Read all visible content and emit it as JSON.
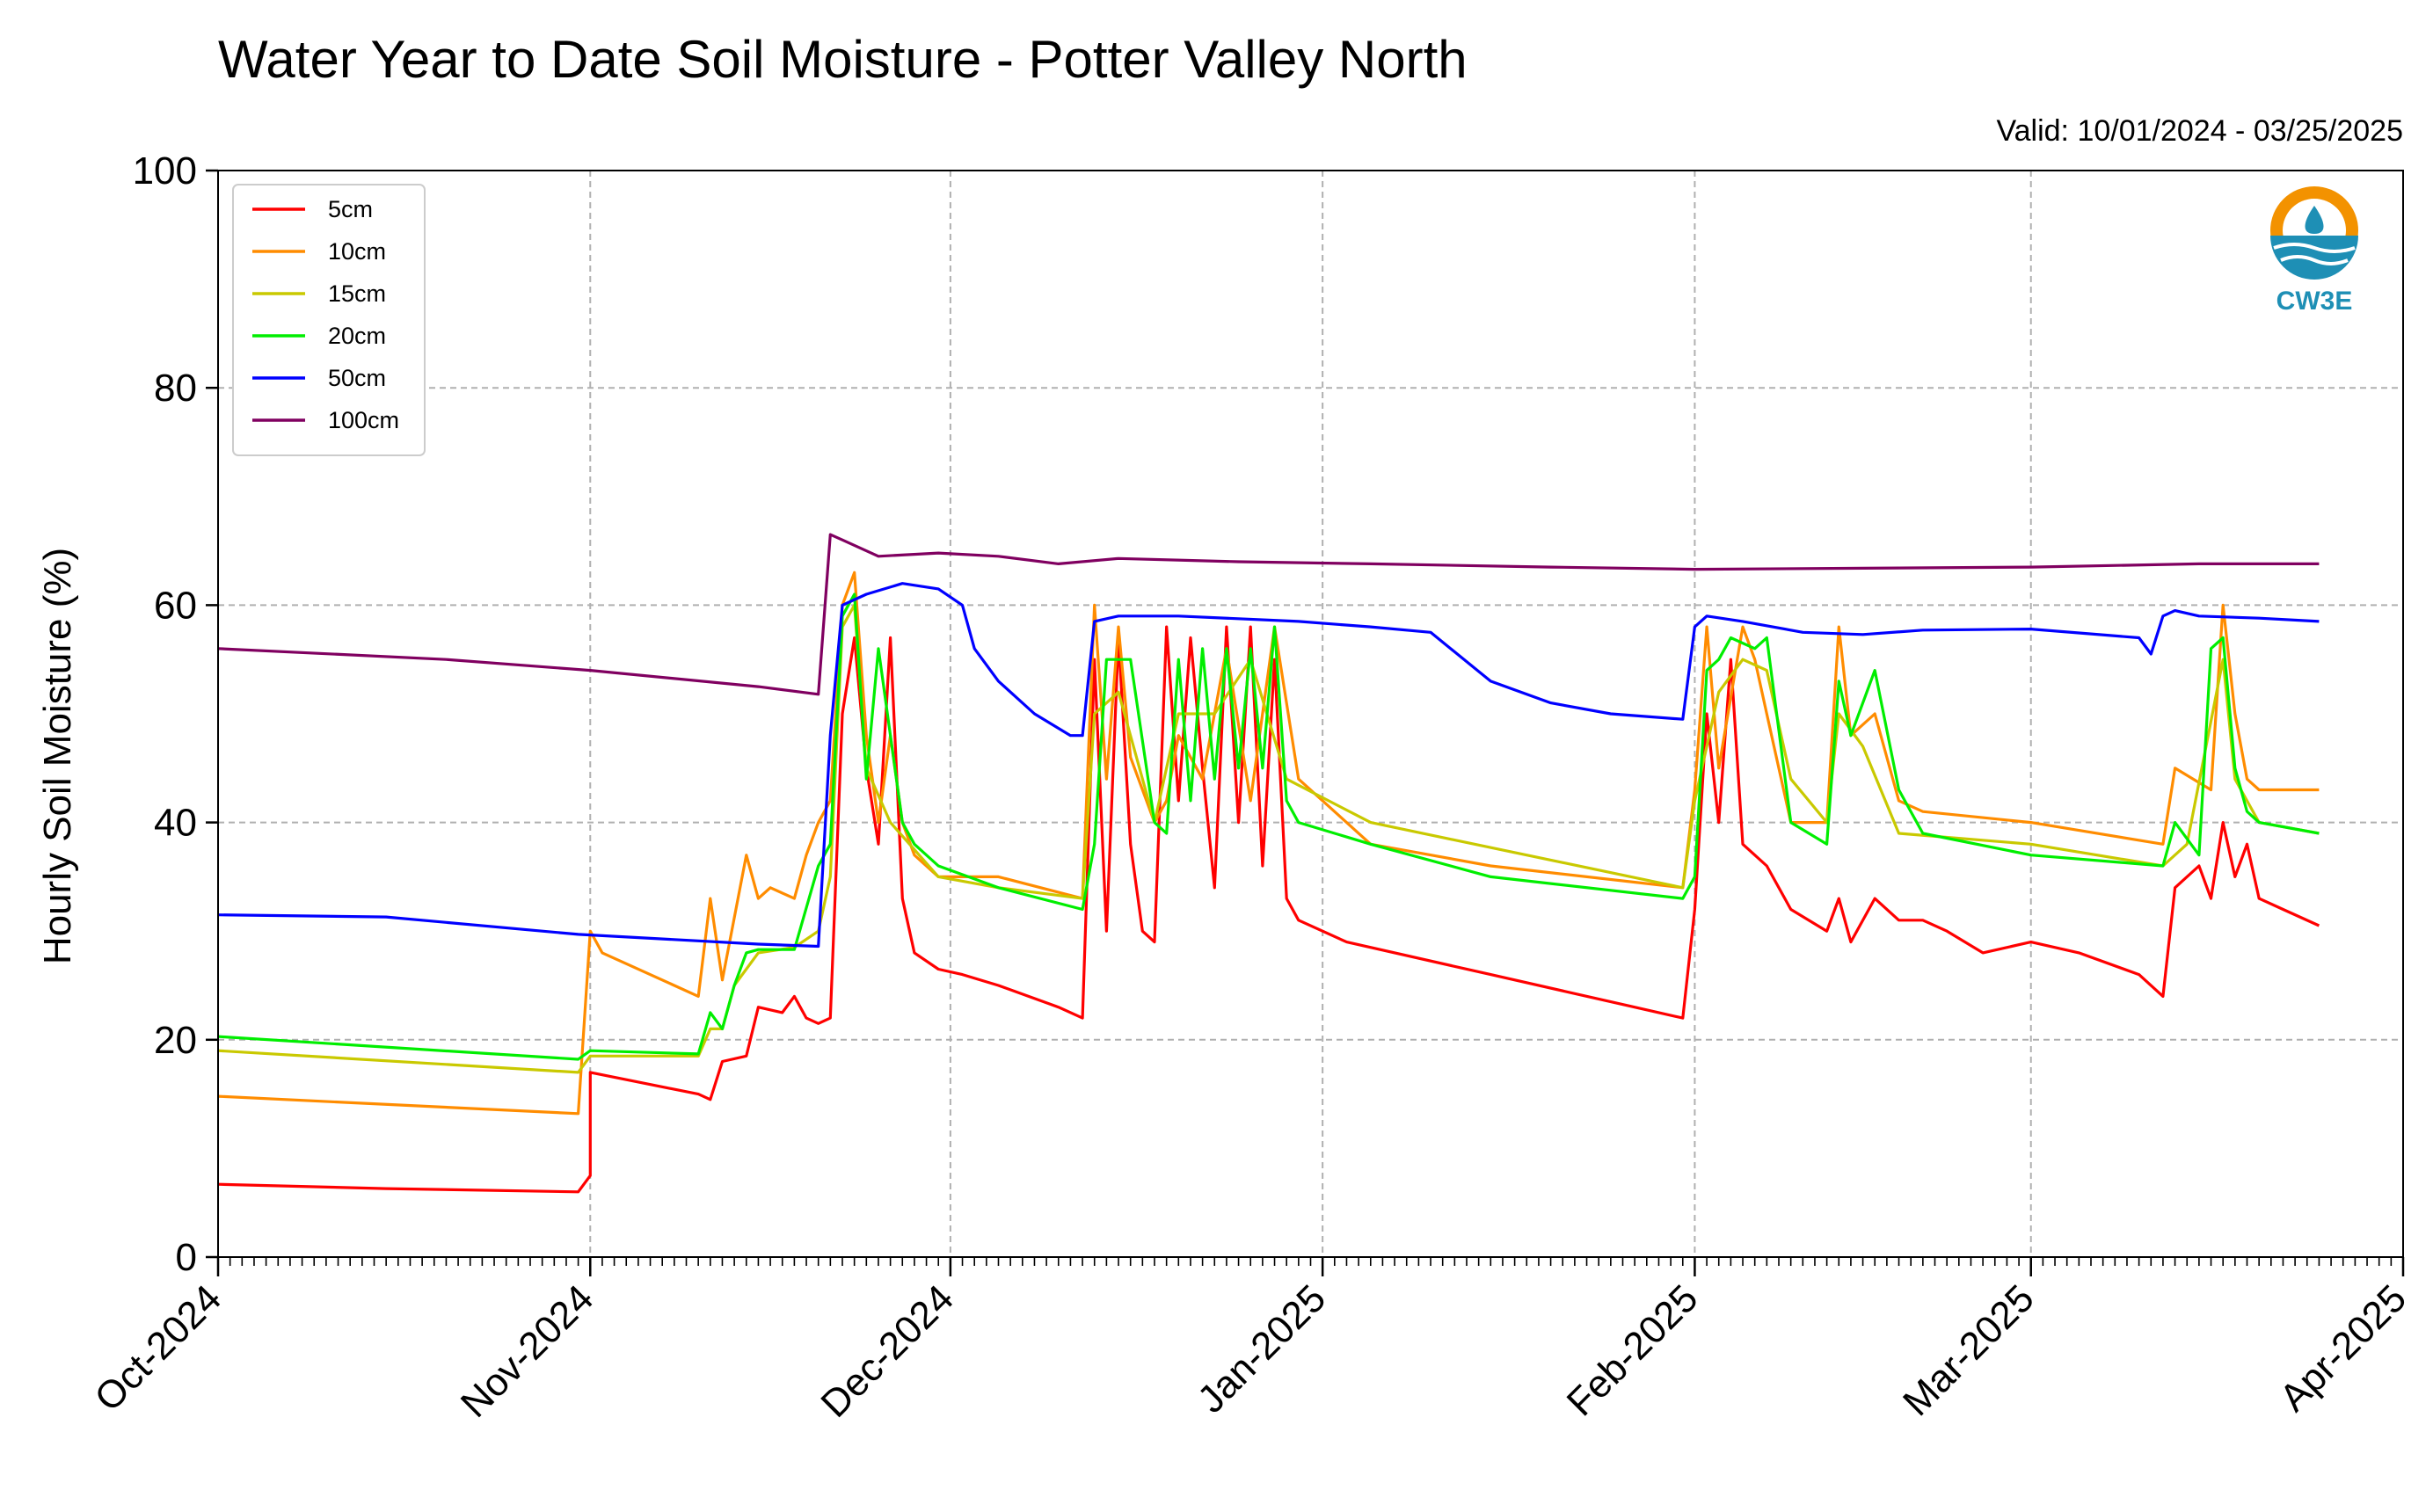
{
  "chart_data": {
    "type": "line",
    "title": "Water Year to Date Soil Moisture - Potter Valley North",
    "subtitle": "Valid: 10/01/2024 - 03/25/2025",
    "xlabel": "",
    "ylabel": "Hourly Soil Moisture (%)",
    "ylim": [
      0,
      100
    ],
    "yticks": [
      0,
      20,
      40,
      60,
      80,
      100
    ],
    "xlim": [
      "2024-10-01",
      "2025-04-01"
    ],
    "xtick_labels": [
      "Oct-2024",
      "Nov-2024",
      "Dec-2024",
      "Jan-2025",
      "Feb-2025",
      "Mar-2025",
      "Apr-2025"
    ],
    "xtick_dates": [
      "2024-10-01",
      "2024-11-01",
      "2024-12-01",
      "2025-01-01",
      "2025-02-01",
      "2025-03-01",
      "2025-04-01"
    ],
    "grid": true,
    "legend_position": "top-left",
    "logo_text": "CW3E",
    "series": [
      {
        "name": "5cm",
        "color": "#ff0000",
        "x": [
          "2024-10-01",
          "2024-10-15",
          "2024-10-31",
          "2024-11-01",
          "2024-11-01",
          "2024-11-10",
          "2024-11-11",
          "2024-11-12",
          "2024-11-14",
          "2024-11-15",
          "2024-11-17",
          "2024-11-18",
          "2024-11-19",
          "2024-11-20",
          "2024-11-21",
          "2024-11-22",
          "2024-11-23",
          "2024-11-24",
          "2024-11-25",
          "2024-11-26",
          "2024-11-27",
          "2024-11-28",
          "2024-11-30",
          "2024-12-02",
          "2024-12-05",
          "2024-12-10",
          "2024-12-12",
          "2024-12-13",
          "2024-12-14",
          "2024-12-15",
          "2024-12-16",
          "2024-12-17",
          "2024-12-18",
          "2024-12-19",
          "2024-12-20",
          "2024-12-21",
          "2024-12-22",
          "2024-12-23",
          "2024-12-24",
          "2024-12-25",
          "2024-12-26",
          "2024-12-27",
          "2024-12-28",
          "2024-12-29",
          "2024-12-30",
          "2025-01-03",
          "2025-01-15",
          "2025-01-31",
          "2025-02-01",
          "2025-02-02",
          "2025-02-03",
          "2025-02-04",
          "2025-02-05",
          "2025-02-06",
          "2025-02-07",
          "2025-02-09",
          "2025-02-12",
          "2025-02-13",
          "2025-02-14",
          "2025-02-16",
          "2025-02-18",
          "2025-02-20",
          "2025-02-22",
          "2025-02-25",
          "2025-03-01",
          "2025-03-05",
          "2025-03-10",
          "2025-03-12",
          "2025-03-13",
          "2025-03-15",
          "2025-03-16",
          "2025-03-17",
          "2025-03-18",
          "2025-03-19",
          "2025-03-20",
          "2025-03-22",
          "2025-03-25"
        ],
        "y": [
          6.7,
          6.3,
          6.0,
          7.5,
          17,
          15,
          14.5,
          18,
          18.5,
          23,
          22.5,
          24,
          22,
          21.5,
          22,
          50,
          57,
          45,
          38,
          57,
          33,
          28,
          26.5,
          26,
          25,
          23,
          22,
          55,
          30,
          57,
          38,
          30,
          29,
          58,
          42,
          57,
          45,
          34,
          58,
          40,
          58,
          36,
          55,
          33,
          31,
          29,
          26,
          22,
          32,
          50,
          40,
          55,
          38,
          37,
          36,
          32,
          30,
          33,
          29,
          33,
          31,
          31,
          30,
          28,
          29,
          28,
          26,
          24,
          34,
          36,
          33,
          40,
          35,
          38,
          33,
          32,
          30.5
        ]
      },
      {
        "name": "10cm",
        "color": "#ff8c00",
        "x": [
          "2024-10-01",
          "2024-10-31",
          "2024-11-01",
          "2024-11-02",
          "2024-11-10",
          "2024-11-11",
          "2024-11-12",
          "2024-11-14",
          "2024-11-15",
          "2024-11-16",
          "2024-11-18",
          "2024-11-19",
          "2024-11-20",
          "2024-11-21",
          "2024-11-22",
          "2024-11-23",
          "2024-11-24",
          "2024-11-25",
          "2024-11-26",
          "2024-11-27",
          "2024-11-28",
          "2024-11-30",
          "2024-12-05",
          "2024-12-12",
          "2024-12-13",
          "2024-12-14",
          "2024-12-15",
          "2024-12-16",
          "2024-12-18",
          "2024-12-19",
          "2024-12-20",
          "2024-12-22",
          "2024-12-24",
          "2024-12-26",
          "2024-12-28",
          "2024-12-30",
          "2025-01-05",
          "2025-01-15",
          "2025-01-31",
          "2025-02-01",
          "2025-02-02",
          "2025-02-03",
          "2025-02-05",
          "2025-02-06",
          "2025-02-07",
          "2025-02-09",
          "2025-02-12",
          "2025-02-13",
          "2025-02-14",
          "2025-02-16",
          "2025-02-18",
          "2025-02-20",
          "2025-03-01",
          "2025-03-12",
          "2025-03-13",
          "2025-03-16",
          "2025-03-17",
          "2025-03-18",
          "2025-03-19",
          "2025-03-20",
          "2025-03-25"
        ],
        "y": [
          14.8,
          13.2,
          30,
          28,
          24,
          33,
          25.5,
          37,
          33,
          34,
          33,
          37,
          40,
          42,
          60,
          63,
          48,
          40,
          48,
          40,
          37,
          35,
          35,
          33,
          60,
          44,
          58,
          46,
          40,
          42,
          48,
          44,
          56,
          42,
          58,
          44,
          38,
          36,
          34,
          43,
          58,
          45,
          58,
          55,
          50,
          40,
          40,
          58,
          48,
          50,
          42,
          41,
          40,
          38,
          45,
          43,
          60,
          50,
          44,
          43,
          43
        ]
      },
      {
        "name": "15cm",
        "color": "#c9c900",
        "x": [
          "2024-10-01",
          "2024-10-31",
          "2024-11-01",
          "2024-11-10",
          "2024-11-11",
          "2024-11-12",
          "2024-11-13",
          "2024-11-15",
          "2024-11-18",
          "2024-11-20",
          "2024-11-21",
          "2024-11-22",
          "2024-11-23",
          "2024-11-24",
          "2024-11-26",
          "2024-11-30",
          "2024-12-05",
          "2024-12-12",
          "2024-12-13",
          "2024-12-15",
          "2024-12-18",
          "2024-12-20",
          "2024-12-23",
          "2024-12-26",
          "2024-12-29",
          "2025-01-05",
          "2025-01-31",
          "2025-02-01",
          "2025-02-03",
          "2025-02-05",
          "2025-02-07",
          "2025-02-09",
          "2025-02-12",
          "2025-02-13",
          "2025-02-15",
          "2025-02-18",
          "2025-03-01",
          "2025-03-12",
          "2025-03-14",
          "2025-03-17",
          "2025-03-18",
          "2025-03-20",
          "2025-03-25"
        ],
        "y": [
          19,
          17,
          18.5,
          18.5,
          21,
          21,
          25,
          28,
          28.5,
          30,
          35,
          58,
          60,
          45,
          40,
          35,
          34,
          33,
          50,
          52,
          40,
          50,
          50,
          55,
          44,
          40,
          34,
          42,
          52,
          55,
          54,
          44,
          40,
          50,
          47,
          39,
          38,
          36,
          38,
          55,
          44,
          40,
          39
        ]
      },
      {
        "name": "20cm",
        "color": "#00ee00",
        "x": [
          "2024-10-01",
          "2024-10-31",
          "2024-11-01",
          "2024-11-10",
          "2024-11-11",
          "2024-11-12",
          "2024-11-13",
          "2024-11-14",
          "2024-11-15",
          "2024-11-18",
          "2024-11-20",
          "2024-11-21",
          "2024-11-22",
          "2024-11-23",
          "2024-11-24",
          "2024-11-25",
          "2024-11-27",
          "2024-11-28",
          "2024-11-30",
          "2024-12-05",
          "2024-12-12",
          "2024-12-13",
          "2024-12-14",
          "2024-12-16",
          "2024-12-18",
          "2024-12-19",
          "2024-12-20",
          "2024-12-21",
          "2024-12-22",
          "2024-12-23",
          "2024-12-24",
          "2024-12-25",
          "2024-12-26",
          "2024-12-27",
          "2024-12-28",
          "2024-12-29",
          "2024-12-30",
          "2025-01-05",
          "2025-01-15",
          "2025-01-31",
          "2025-02-01",
          "2025-02-02",
          "2025-02-03",
          "2025-02-04",
          "2025-02-06",
          "2025-02-07",
          "2025-02-09",
          "2025-02-12",
          "2025-02-13",
          "2025-02-14",
          "2025-02-16",
          "2025-02-18",
          "2025-02-20",
          "2025-03-01",
          "2025-03-12",
          "2025-03-13",
          "2025-03-15",
          "2025-03-16",
          "2025-03-17",
          "2025-03-18",
          "2025-03-19",
          "2025-03-20",
          "2025-03-25"
        ],
        "y": [
          20.3,
          18.2,
          19,
          18.7,
          22.5,
          21,
          25,
          28,
          28.3,
          28.3,
          36,
          38,
          59,
          61,
          44,
          56,
          40,
          38,
          36,
          34,
          32,
          38,
          55,
          55,
          40,
          39,
          55,
          42,
          56,
          44,
          56,
          45,
          56,
          45,
          58,
          42,
          40,
          38,
          35,
          33,
          35,
          54,
          55,
          57,
          56,
          57,
          40,
          38,
          53,
          48,
          54,
          43,
          39,
          37,
          36,
          40,
          37,
          56,
          57,
          45,
          41,
          40,
          39
        ]
      },
      {
        "name": "50cm",
        "color": "#0000ff",
        "x": [
          "2024-10-01",
          "2024-10-15",
          "2024-10-31",
          "2024-11-15",
          "2024-11-20",
          "2024-11-21",
          "2024-11-22",
          "2024-11-24",
          "2024-11-27",
          "2024-11-30",
          "2024-12-02",
          "2024-12-03",
          "2024-12-05",
          "2024-12-08",
          "2024-12-11",
          "2024-12-12",
          "2024-12-13",
          "2024-12-15",
          "2024-12-20",
          "2024-12-30",
          "2025-01-05",
          "2025-01-10",
          "2025-01-15",
          "2025-01-20",
          "2025-01-25",
          "2025-01-31",
          "2025-02-01",
          "2025-02-02",
          "2025-02-05",
          "2025-02-10",
          "2025-02-15",
          "2025-02-20",
          "2025-03-01",
          "2025-03-10",
          "2025-03-11",
          "2025-03-12",
          "2025-03-13",
          "2025-03-15",
          "2025-03-20",
          "2025-03-25"
        ],
        "y": [
          31.5,
          31.3,
          29.7,
          28.8,
          28.6,
          48,
          60,
          61,
          62,
          61.5,
          60,
          56,
          53,
          50,
          48,
          48,
          58.5,
          59,
          59,
          58.5,
          58,
          57.5,
          53,
          51,
          50,
          49.5,
          58,
          59,
          58.5,
          57.5,
          57.3,
          57.7,
          57.8,
          57,
          55.5,
          59,
          59.5,
          59,
          58.8,
          58.5
        ]
      },
      {
        "name": "100cm",
        "color": "#800060",
        "x": [
          "2024-10-01",
          "2024-10-20",
          "2024-11-01",
          "2024-11-15",
          "2024-11-20",
          "2024-11-21",
          "2024-11-22",
          "2024-11-25",
          "2024-11-30",
          "2024-12-05",
          "2024-12-10",
          "2024-12-15",
          "2024-12-25",
          "2025-01-05",
          "2025-01-20",
          "2025-02-01",
          "2025-02-15",
          "2025-03-01",
          "2025-03-15",
          "2025-03-25"
        ],
        "y": [
          56,
          55,
          54,
          52.5,
          51.8,
          66.5,
          66,
          64.5,
          64.8,
          64.5,
          63.8,
          64.3,
          64,
          63.8,
          63.5,
          63.3,
          63.4,
          63.5,
          63.8,
          63.8
        ]
      }
    ]
  }
}
